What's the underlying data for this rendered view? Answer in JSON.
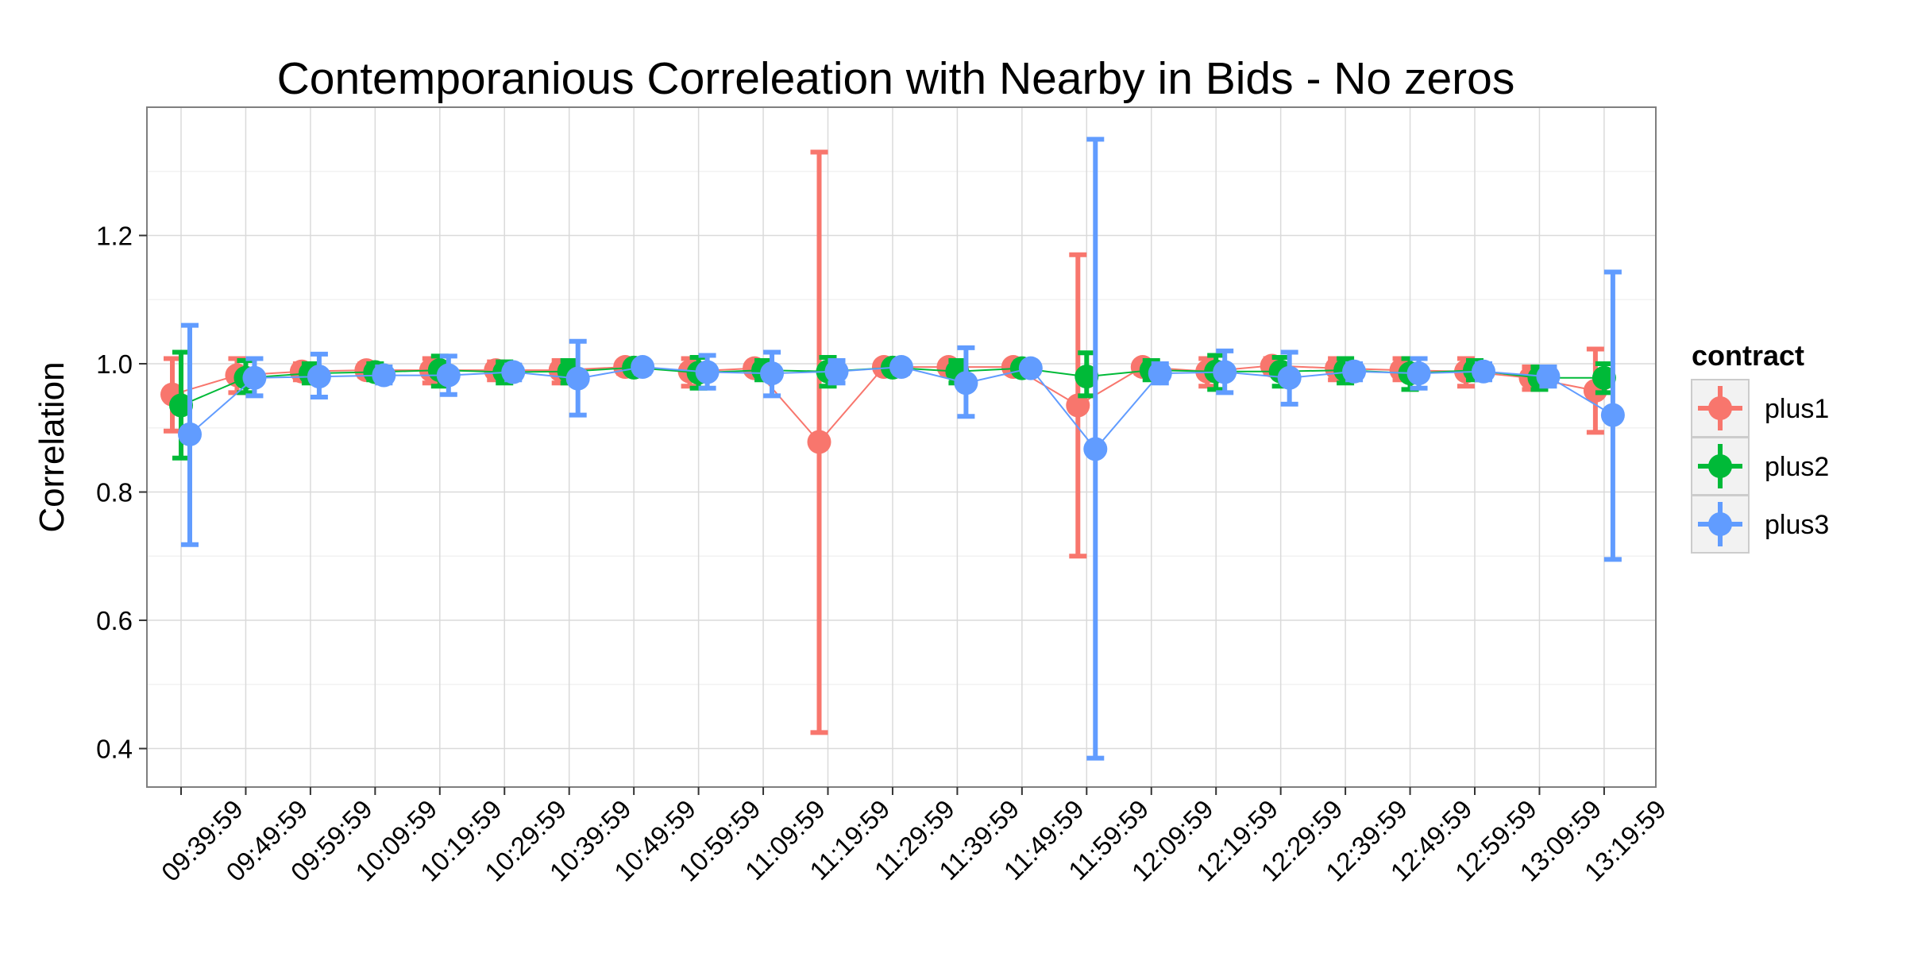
{
  "chart_data": {
    "type": "line",
    "title": "Contemporanious Correleation with Nearby in Bids - No zeros",
    "xlabel": "",
    "ylabel": "Correlation",
    "categories": [
      "09:39:59",
      "09:49:59",
      "09:59:59",
      "10:09:59",
      "10:19:59",
      "10:29:59",
      "10:39:59",
      "10:49:59",
      "10:59:59",
      "11:09:59",
      "11:19:59",
      "11:29:59",
      "11:39:59",
      "11:49:59",
      "11:59:59",
      "12:09:59",
      "12:19:59",
      "12:29:59",
      "12:39:59",
      "12:49:59",
      "12:59:59",
      "13:09:59",
      "13:19:59"
    ],
    "ylim": [
      0.34,
      1.4
    ],
    "yticks": [
      0.4,
      0.6,
      0.8,
      1.0,
      1.2
    ],
    "ytick_labels": [
      "0.4",
      "0.6",
      "0.8",
      "1.0",
      "1.2"
    ],
    "grid": true,
    "legend": {
      "title": "contract",
      "position": "right"
    },
    "series": [
      {
        "name": "plus1",
        "color": "#F8766D",
        "values": [
          0.952,
          0.982,
          0.988,
          0.99,
          0.99,
          0.99,
          0.99,
          0.995,
          0.988,
          0.993,
          0.878,
          0.995,
          0.995,
          0.995,
          0.935,
          0.995,
          0.988,
          0.997,
          0.993,
          0.99,
          0.988,
          0.978,
          0.958
        ],
        "lower": [
          0.895,
          0.955,
          0.975,
          0.98,
          0.97,
          0.975,
          0.97,
          0.985,
          0.965,
          0.985,
          0.425,
          0.985,
          0.985,
          0.985,
          0.7,
          0.985,
          0.965,
          0.985,
          0.975,
          0.975,
          0.965,
          0.96,
          0.893
        ],
        "upper": [
          1.008,
          1.008,
          1.0,
          1.0,
          1.008,
          1.003,
          1.005,
          1.003,
          1.008,
          1.0,
          1.33,
          1.003,
          1.003,
          1.003,
          1.17,
          1.003,
          1.008,
          1.008,
          1.008,
          1.008,
          1.008,
          0.995,
          1.023
        ]
      },
      {
        "name": "plus2",
        "color": "#00BA38",
        "values": [
          0.935,
          0.978,
          0.985,
          0.987,
          0.99,
          0.987,
          0.988,
          0.994,
          0.986,
          0.99,
          0.988,
          0.994,
          0.988,
          0.993,
          0.98,
          0.99,
          0.988,
          0.988,
          0.99,
          0.985,
          0.99,
          0.978,
          0.978
        ],
        "lower": [
          0.853,
          0.955,
          0.97,
          0.975,
          0.965,
          0.97,
          0.97,
          0.985,
          0.962,
          0.975,
          0.965,
          0.985,
          0.97,
          0.985,
          0.95,
          0.975,
          0.96,
          0.965,
          0.97,
          0.96,
          0.975,
          0.96,
          0.955
        ],
        "upper": [
          1.018,
          1.005,
          1.0,
          1.0,
          1.012,
          1.003,
          1.005,
          1.003,
          1.01,
          1.005,
          1.01,
          1.003,
          1.005,
          1.003,
          1.017,
          1.005,
          1.013,
          1.01,
          1.008,
          1.008,
          1.005,
          0.995,
          1.0
        ]
      },
      {
        "name": "plus3",
        "color": "#619CFF",
        "values": [
          0.89,
          0.978,
          0.98,
          0.982,
          0.982,
          0.987,
          0.977,
          0.995,
          0.987,
          0.985,
          0.988,
          0.995,
          0.97,
          0.993,
          0.867,
          0.985,
          0.987,
          0.978,
          0.988,
          0.985,
          0.988,
          0.98,
          0.92
        ],
        "lower": [
          0.718,
          0.95,
          0.948,
          0.97,
          0.952,
          0.975,
          0.92,
          0.985,
          0.962,
          0.95,
          0.97,
          0.985,
          0.918,
          0.985,
          0.385,
          0.97,
          0.955,
          0.937,
          0.975,
          0.962,
          0.975,
          0.965,
          0.695
        ],
        "upper": [
          1.06,
          1.008,
          1.015,
          0.995,
          1.012,
          0.998,
          1.035,
          1.003,
          1.013,
          1.018,
          1.005,
          1.003,
          1.025,
          1.002,
          1.35,
          1.0,
          1.02,
          1.018,
          1.0,
          1.008,
          1.0,
          0.995,
          1.143
        ]
      }
    ]
  }
}
